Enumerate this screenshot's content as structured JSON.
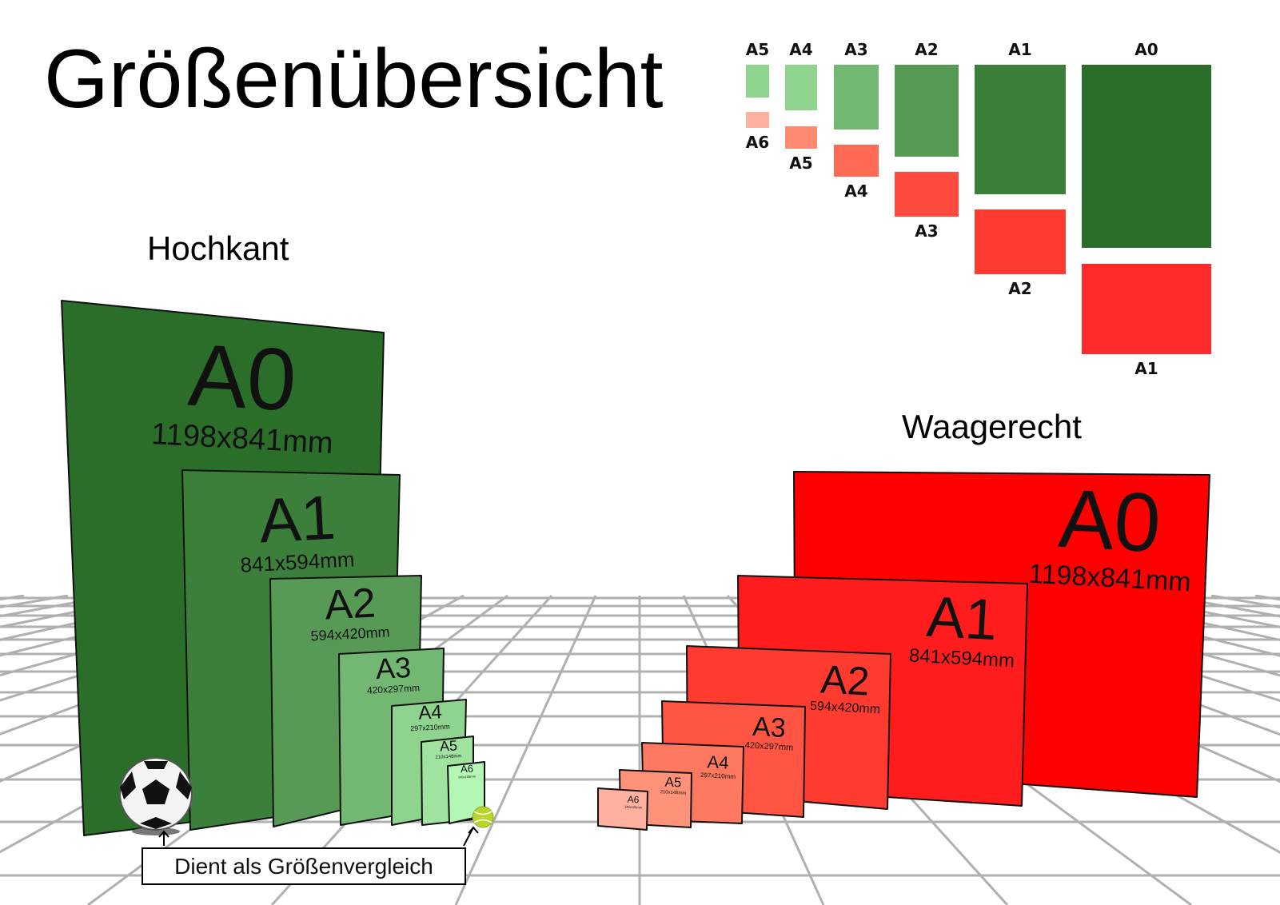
{
  "title": "Größenübersicht",
  "portrait": {
    "heading": "Hochkant",
    "sheets": [
      {
        "name": "A0",
        "size": "1198x841mm",
        "color": "#2a6e2a"
      },
      {
        "name": "A1",
        "size": "841x594mm",
        "color": "#3b7f3b"
      },
      {
        "name": "A2",
        "size": "594x420mm",
        "color": "#569a56"
      },
      {
        "name": "A3",
        "size": "420x297mm",
        "color": "#72b872"
      },
      {
        "name": "A4",
        "size": "297x210mm",
        "color": "#8ed38e"
      },
      {
        "name": "A5",
        "size": "210x148mm",
        "color": "#a0e3a0"
      },
      {
        "name": "A6",
        "size": "148x105mm",
        "color": "#b4f7b4"
      }
    ]
  },
  "landscape": {
    "heading": "Waagerecht",
    "sheets": [
      {
        "name": "A0",
        "size": "1198x841mm",
        "color": "#ff0000"
      },
      {
        "name": "A1",
        "size": "841x594mm",
        "color": "#ff1c1c"
      },
      {
        "name": "A2",
        "size": "594x420mm",
        "color": "#ff3a2e"
      },
      {
        "name": "A3",
        "size": "420x297mm",
        "color": "#ff5542"
      },
      {
        "name": "A4",
        "size": "297x210mm",
        "color": "#ff7860"
      },
      {
        "name": "A5",
        "size": "210x148mm",
        "color": "#ff937a"
      },
      {
        "name": "A6",
        "size": "148x105mm",
        "color": "#ffb09e"
      }
    ]
  },
  "overview": {
    "pairs": [
      {
        "top": "A5",
        "bottom": "A6",
        "top_color": "#8ed38e",
        "bottom_color": "#ffb09e"
      },
      {
        "top": "A4",
        "bottom": "A5",
        "top_color": "#8ed38e",
        "bottom_color": "#ff8a70"
      },
      {
        "top": "A3",
        "bottom": "A4",
        "top_color": "#72b872",
        "bottom_color": "#ff6a55"
      },
      {
        "top": "A2",
        "bottom": "A3",
        "top_color": "#569a56",
        "bottom_color": "#ff4a40"
      },
      {
        "top": "A1",
        "bottom": "A2",
        "top_color": "#3b7f3b",
        "bottom_color": "#ff3a30"
      },
      {
        "top": "A0",
        "bottom": "A1",
        "top_color": "#2a6e2a",
        "bottom_color": "#ff2a2a"
      }
    ]
  },
  "comparison_caption": "Dient als Größenvergleich"
}
